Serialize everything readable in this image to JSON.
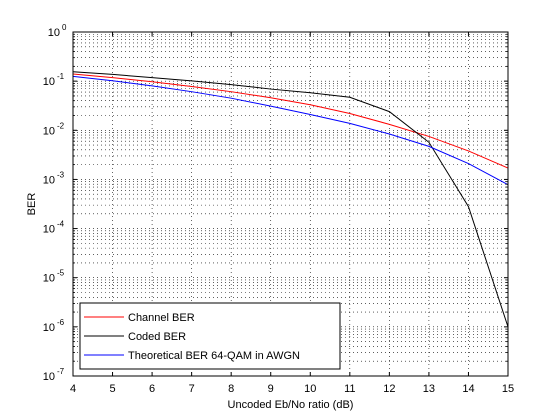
{
  "chart_data": {
    "type": "line",
    "xlabel": "Uncoded Eb/No ratio (dB)",
    "ylabel": "BER",
    "xlim": [
      4,
      15
    ],
    "ylim": [
      1e-07,
      1
    ],
    "y_scale": "log",
    "grid": true,
    "legend_position": "bottom-left",
    "x_ticks": [
      4,
      5,
      6,
      7,
      8,
      9,
      10,
      11,
      12,
      13,
      14,
      15
    ],
    "y_ticks": [
      {
        "value": 1e-07,
        "base": "10",
        "exp": "-7"
      },
      {
        "value": 1e-06,
        "base": "10",
        "exp": "-6"
      },
      {
        "value": 1e-05,
        "base": "10",
        "exp": "-5"
      },
      {
        "value": 0.0001,
        "base": "10",
        "exp": "-4"
      },
      {
        "value": 0.001,
        "base": "10",
        "exp": "-3"
      },
      {
        "value": 0.01,
        "base": "10",
        "exp": "-2"
      },
      {
        "value": 0.1,
        "base": "10",
        "exp": "-1"
      },
      {
        "value": 1,
        "base": "10",
        "exp": "0"
      }
    ],
    "x": [
      4,
      5,
      6,
      7,
      8,
      9,
      10,
      11,
      12,
      13,
      14,
      15
    ],
    "series": [
      {
        "name": "Channel BER",
        "color": "#ff0000",
        "values": [
          0.14,
          0.118,
          0.097,
          0.078,
          0.061,
          0.046,
          0.033,
          0.022,
          0.0132,
          0.0075,
          0.0038,
          0.0017
        ]
      },
      {
        "name": "Coded BER",
        "color": "#000000",
        "values": [
          0.155,
          0.137,
          0.118,
          0.101,
          0.085,
          0.069,
          0.058,
          0.047,
          0.024,
          0.0057,
          0.00028,
          1e-06
        ]
      },
      {
        "name": "Theoretical BER 64-QAM in AWGN",
        "color": "#0000ff",
        "values": [
          0.125,
          0.102,
          0.08,
          0.061,
          0.045,
          0.031,
          0.021,
          0.0138,
          0.0084,
          0.0047,
          0.0021,
          0.00078
        ]
      }
    ]
  }
}
